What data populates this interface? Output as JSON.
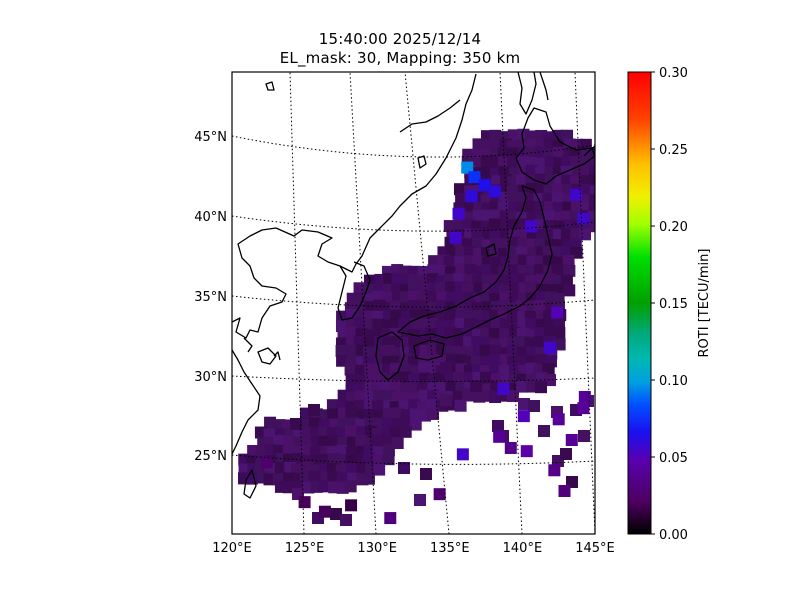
{
  "title": "15:40:00 2025/12/14",
  "subtitle": "EL_mask: 30, Mapping: 350 km",
  "chart_data": {
    "type": "heatmap",
    "title": "15:40:00 2025/12/14",
    "subtitle": "EL_mask: 30, Mapping: 350 km",
    "xlim": [
      120,
      145
    ],
    "ylim": [
      20,
      49
    ],
    "x_ticks": [
      "120°E",
      "125°E",
      "130°E",
      "135°E",
      "140°E",
      "145°E"
    ],
    "y_ticks": [
      "25°N",
      "30°N",
      "35°N",
      "40°N",
      "45°N"
    ],
    "grid": "dotted graticule",
    "colorbar": {
      "label": "ROTI [TECU/min]",
      "range": [
        0.0,
        0.3
      ],
      "ticks": [
        "0.00",
        "0.05",
        "0.10",
        "0.15",
        "0.20",
        "0.25",
        "0.30"
      ],
      "colormap": "nipy_spectral"
    },
    "cells": [
      {
        "lon": 136.2,
        "lat": 43.0,
        "roti": 0.095
      },
      {
        "lon": 136.7,
        "lat": 42.4,
        "roti": 0.075
      },
      {
        "lon": 137.4,
        "lat": 41.9,
        "roti": 0.065
      },
      {
        "lon": 138.1,
        "lat": 41.5,
        "roti": 0.06
      },
      {
        "lon": 136.5,
        "lat": 41.2,
        "roti": 0.06
      },
      {
        "lon": 135.6,
        "lat": 40.1,
        "roti": 0.055
      },
      {
        "lon": 135.4,
        "lat": 38.6,
        "roti": 0.055
      },
      {
        "lon": 143.7,
        "lat": 41.3,
        "roti": 0.055
      },
      {
        "lon": 144.2,
        "lat": 39.8,
        "roti": 0.055
      },
      {
        "lon": 140.6,
        "lat": 39.3,
        "roti": 0.055
      },
      {
        "lon": 142.4,
        "lat": 33.9,
        "roti": 0.05
      },
      {
        "lon": 141.9,
        "lat": 31.7,
        "roti": 0.055
      },
      {
        "lon": 138.7,
        "lat": 29.1,
        "roti": 0.055
      },
      {
        "lon": 140.1,
        "lat": 27.4,
        "roti": 0.05
      },
      {
        "lon": 135.9,
        "lat": 25.0,
        "roti": 0.055
      },
      {
        "lon": 140.3,
        "lat": 25.2,
        "roti": 0.045
      },
      {
        "lon": 142.5,
        "lat": 27.2,
        "roti": 0.04
      },
      {
        "lon": 144.2,
        "lat": 27.9,
        "roti": 0.04
      },
      {
        "lon": 143.4,
        "lat": 25.9,
        "roti": 0.04
      },
      {
        "lon": 142.2,
        "lat": 24.0,
        "roti": 0.035
      },
      {
        "lon": 144.3,
        "lat": 28.6,
        "roti": 0.04
      },
      {
        "lon": 142.9,
        "lat": 22.7,
        "roti": 0.03
      },
      {
        "lon": 138.4,
        "lat": 26.1,
        "roti": 0.04
      },
      {
        "lon": 139.2,
        "lat": 25.4,
        "roti": 0.035
      },
      {
        "lon": 130.9,
        "lat": 21.0,
        "roti": 0.03
      },
      {
        "lon": 128.2,
        "lat": 21.8,
        "roti": 0.015
      },
      {
        "lon": 125.0,
        "lat": 22.0,
        "roti": 0.02
      },
      {
        "lon": 122.4,
        "lat": 24.5,
        "roti": 0.025
      },
      {
        "lon": 126.4,
        "lat": 21.4,
        "roti": 0.02
      },
      {
        "lon": 134.3,
        "lat": 22.5,
        "roti": 0.025
      }
    ]
  }
}
